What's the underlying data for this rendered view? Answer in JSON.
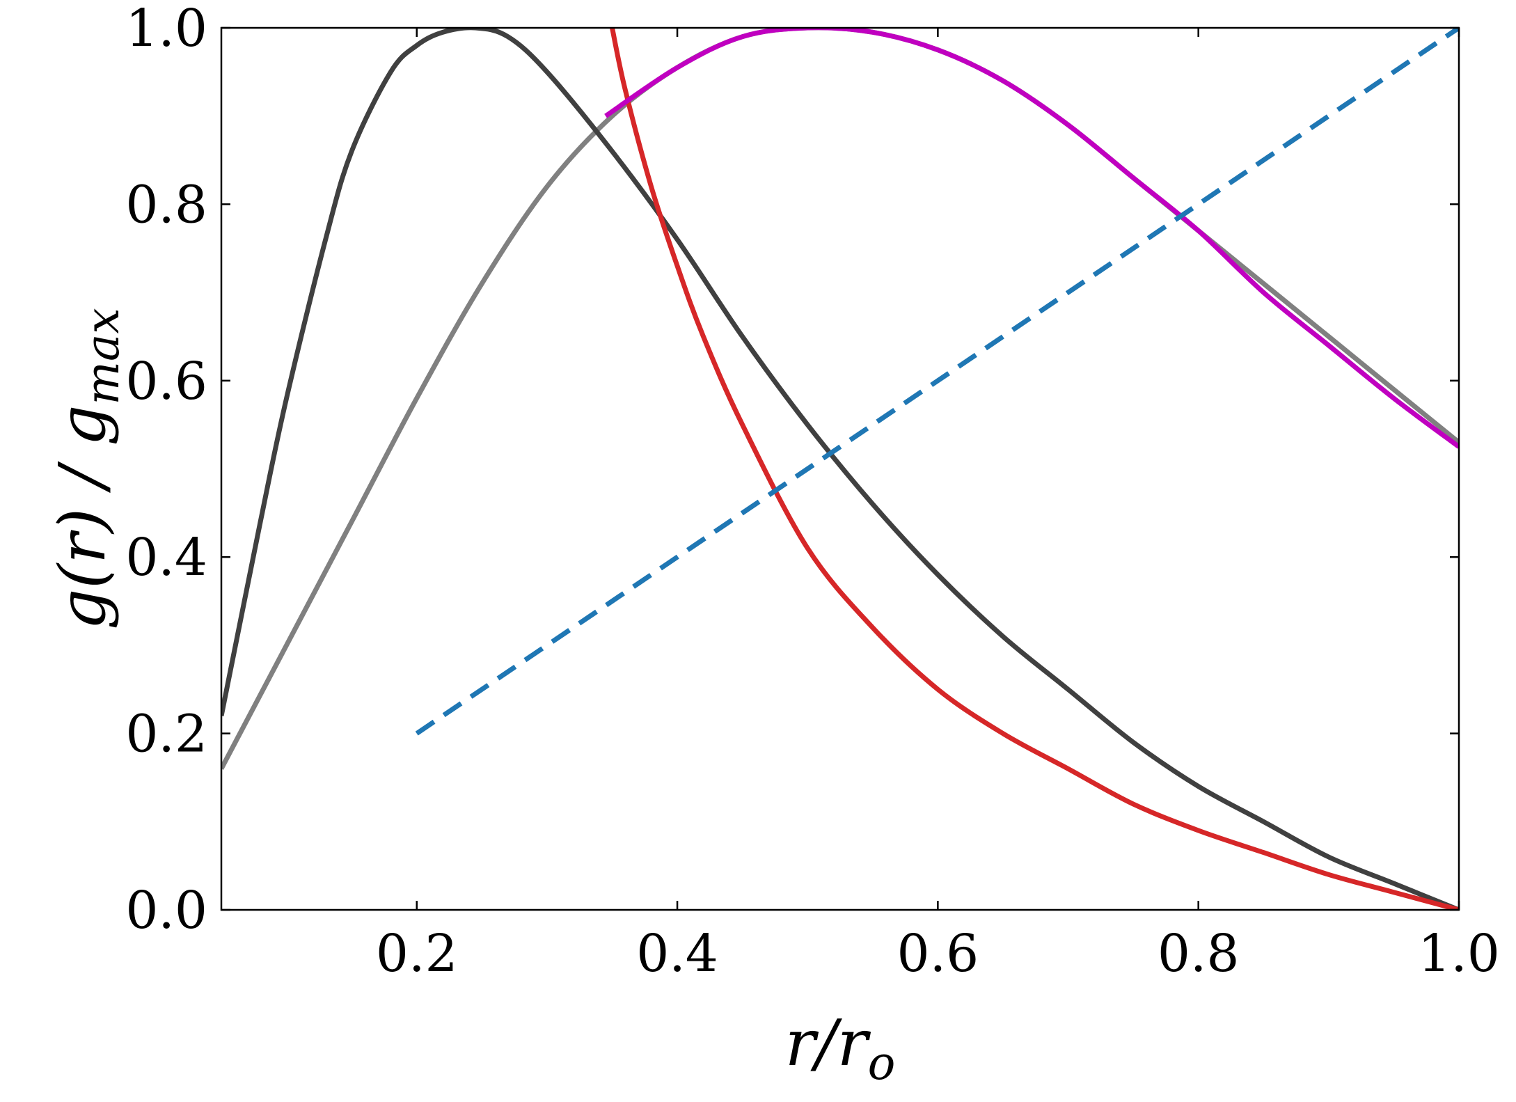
{
  "chart_data": {
    "type": "line",
    "xlabel": {
      "main": "r/r",
      "sub": "o"
    },
    "ylabel": {
      "main": "g(r) / g",
      "sub": "max"
    },
    "xlim": [
      0.05,
      1.0
    ],
    "ylim": [
      0.0,
      1.0
    ],
    "xticks": [
      0.2,
      0.4,
      0.6,
      0.8,
      1.0
    ],
    "xtick_labels": [
      "0.2",
      "0.4",
      "0.6",
      "0.8",
      "1.0"
    ],
    "yticks": [
      0.0,
      0.2,
      0.4,
      0.6,
      0.8,
      1.0
    ],
    "ytick_labels": [
      "0.0",
      "0.2",
      "0.4",
      "0.6",
      "0.8",
      "1.0"
    ],
    "grid": false,
    "legend": "none",
    "series": [
      {
        "color": "#808080",
        "style": "solid",
        "x": [
          0.05,
          0.1,
          0.15,
          0.2,
          0.25,
          0.3,
          0.35,
          0.4,
          0.45,
          0.5,
          0.55,
          0.6,
          0.65,
          0.7,
          0.75,
          0.8,
          0.85,
          0.9,
          0.95,
          1.0
        ],
        "y": [
          0.16,
          0.3,
          0.44,
          0.58,
          0.71,
          0.82,
          0.9,
          0.955,
          0.99,
          1.0,
          0.995,
          0.975,
          0.94,
          0.89,
          0.83,
          0.77,
          0.71,
          0.65,
          0.59,
          0.53
        ]
      },
      {
        "color": "#404040",
        "style": "solid",
        "x": [
          0.05,
          0.08,
          0.1,
          0.13,
          0.15,
          0.18,
          0.2,
          0.22,
          0.245,
          0.27,
          0.3,
          0.35,
          0.4,
          0.45,
          0.5,
          0.55,
          0.6,
          0.65,
          0.7,
          0.75,
          0.8,
          0.85,
          0.9,
          0.95,
          1.0
        ],
        "y": [
          0.22,
          0.44,
          0.58,
          0.76,
          0.86,
          0.95,
          0.98,
          0.995,
          1.0,
          0.99,
          0.95,
          0.86,
          0.76,
          0.65,
          0.55,
          0.46,
          0.38,
          0.31,
          0.25,
          0.19,
          0.14,
          0.1,
          0.06,
          0.03,
          0.0
        ]
      },
      {
        "color": "#d62728",
        "style": "solid",
        "x": [
          0.35,
          0.36,
          0.38,
          0.4,
          0.42,
          0.45,
          0.5,
          0.55,
          0.6,
          0.65,
          0.7,
          0.75,
          0.8,
          0.85,
          0.9,
          0.95,
          1.0
        ],
        "y": [
          1.0,
          0.93,
          0.82,
          0.73,
          0.65,
          0.55,
          0.41,
          0.32,
          0.25,
          0.2,
          0.16,
          0.12,
          0.09,
          0.065,
          0.04,
          0.02,
          0.0
        ]
      },
      {
        "color": "#c000c0",
        "style": "solid",
        "x": [
          0.345,
          0.4,
          0.45,
          0.5,
          0.55,
          0.6,
          0.65,
          0.7,
          0.75,
          0.8,
          0.85,
          0.9,
          0.95,
          1.0
        ],
        "y": [
          0.9,
          0.955,
          0.99,
          1.0,
          0.995,
          0.975,
          0.94,
          0.89,
          0.83,
          0.77,
          0.7,
          0.64,
          0.58,
          0.525
        ]
      },
      {
        "color": "#1f77b4",
        "style": "dashed",
        "x": [
          0.2,
          1.0
        ],
        "y": [
          0.2,
          1.0
        ]
      }
    ]
  }
}
